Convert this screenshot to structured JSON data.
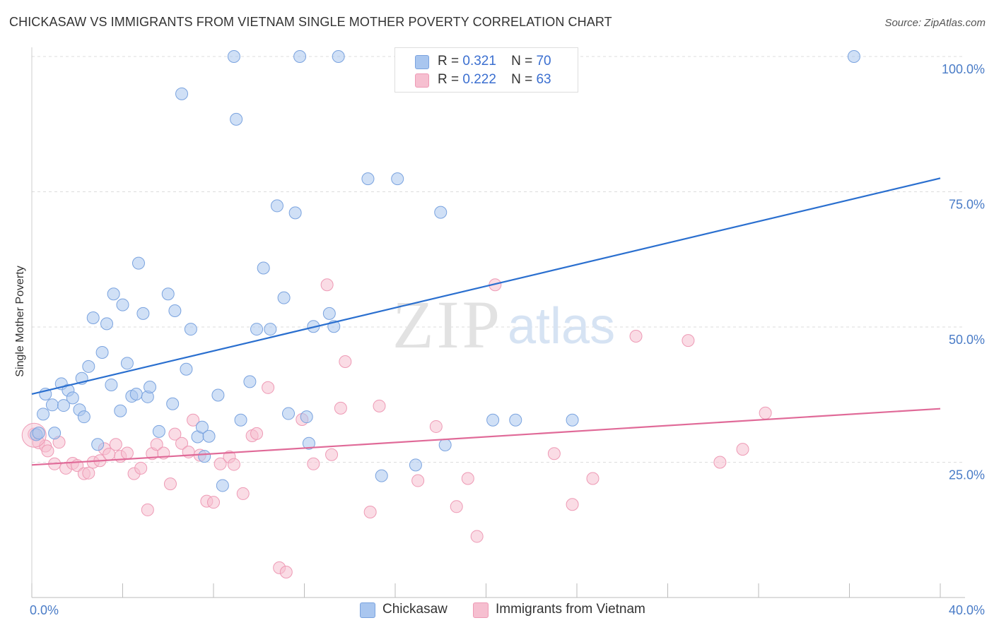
{
  "title": "CHICKASAW VS IMMIGRANTS FROM VIETNAM SINGLE MOTHER POVERTY CORRELATION CHART",
  "source": "Source: ZipAtlas.com",
  "watermark": {
    "part1": "ZIP",
    "part2": "atlas"
  },
  "legend_top": {
    "rows": [
      {
        "r_label": "R =",
        "r_value": "0.321",
        "n_label": "N =",
        "n_value": "70"
      },
      {
        "r_label": "R =",
        "r_value": "0.222",
        "n_label": "N =",
        "n_value": "63"
      }
    ]
  },
  "legend_bottom": {
    "chickasaw": "Chickasaw",
    "vietnam": "Immigrants from Vietnam"
  },
  "colors": {
    "blue_fill": "#a9c6ef",
    "blue_stroke": "#7aa3df",
    "blue_line": "#2a6fcf",
    "pink_fill": "#f6bfd0",
    "pink_stroke": "#ee9ab5",
    "pink_line": "#e06a98",
    "tick_text": "#4a7cc7",
    "grid": "#dddddd"
  },
  "chart_data": {
    "type": "scatter",
    "title": "CHICKASAW VS IMMIGRANTS FROM VIETNAM SINGLE MOTHER POVERTY CORRELATION CHART",
    "xlabel": "",
    "ylabel": "Single Mother Poverty",
    "xlim": [
      0,
      40
    ],
    "ylim": [
      0,
      100
    ],
    "x_tick_labels": [
      "0.0%",
      "40.0%"
    ],
    "y_tick_labels": [
      "25.0%",
      "50.0%",
      "75.0%",
      "100.0%"
    ],
    "y_ticks": [
      25,
      50,
      75,
      100
    ],
    "grid": "horizontal dashed",
    "legend": "top-center",
    "series": [
      {
        "name": "Chickasaw",
        "r": 0.321,
        "n": 70,
        "trend": {
          "x": [
            0,
            40
          ],
          "y": [
            37.6,
            77.5
          ]
        },
        "points": [
          [
            0.2,
            30.1
          ],
          [
            0.5,
            33.9
          ],
          [
            0.6,
            37.6
          ],
          [
            0.9,
            35.6
          ],
          [
            1.0,
            30.4
          ],
          [
            1.3,
            39.5
          ],
          [
            1.4,
            35.5
          ],
          [
            1.6,
            38.3
          ],
          [
            1.8,
            36.9
          ],
          [
            2.1,
            34.7
          ],
          [
            2.2,
            40.5
          ],
          [
            2.3,
            33.4
          ],
          [
            2.5,
            42.7
          ],
          [
            2.7,
            51.7
          ],
          [
            2.9,
            28.3
          ],
          [
            3.1,
            45.3
          ],
          [
            3.3,
            50.6
          ],
          [
            3.5,
            39.3
          ],
          [
            3.6,
            56.1
          ],
          [
            3.9,
            34.5
          ],
          [
            4.0,
            54.1
          ],
          [
            4.2,
            43.3
          ],
          [
            4.4,
            37.2
          ],
          [
            4.6,
            37.6
          ],
          [
            4.7,
            61.8
          ],
          [
            4.9,
            52.5
          ],
          [
            5.1,
            37.1
          ],
          [
            5.2,
            38.9
          ],
          [
            5.6,
            30.7
          ],
          [
            6.0,
            56.1
          ],
          [
            6.2,
            35.8
          ],
          [
            6.3,
            53.0
          ],
          [
            6.6,
            93.1
          ],
          [
            6.8,
            42.2
          ],
          [
            7.0,
            49.6
          ],
          [
            7.3,
            29.7
          ],
          [
            7.5,
            31.5
          ],
          [
            7.6,
            26.1
          ],
          [
            7.8,
            29.8
          ],
          [
            8.2,
            37.4
          ],
          [
            8.4,
            20.7
          ],
          [
            8.9,
            100
          ],
          [
            9.0,
            88.4
          ],
          [
            9.2,
            32.8
          ],
          [
            9.6,
            39.9
          ],
          [
            9.9,
            49.6
          ],
          [
            10.2,
            60.9
          ],
          [
            10.5,
            49.6
          ],
          [
            10.8,
            72.4
          ],
          [
            11.1,
            55.4
          ],
          [
            11.3,
            34.0
          ],
          [
            11.6,
            71.1
          ],
          [
            11.8,
            100
          ],
          [
            12.1,
            33.4
          ],
          [
            12.2,
            28.5
          ],
          [
            12.4,
            50.1
          ],
          [
            13.1,
            52.5
          ],
          [
            13.3,
            50.1
          ],
          [
            13.5,
            100
          ],
          [
            14.8,
            77.4
          ],
          [
            15.4,
            22.5
          ],
          [
            16.1,
            77.4
          ],
          [
            16.9,
            24.5
          ],
          [
            18.0,
            71.2
          ],
          [
            18.2,
            28.2
          ],
          [
            20.3,
            32.8
          ],
          [
            21.3,
            32.8
          ],
          [
            23.8,
            32.8
          ],
          [
            36.2,
            100
          ],
          [
            0.3,
            30.4
          ]
        ]
      },
      {
        "name": "Immigrants from Vietnam",
        "r": 0.222,
        "n": 63,
        "trend": {
          "x": [
            0,
            40
          ],
          "y": [
            24.5,
            34.9
          ]
        },
        "points": [
          [
            0.1,
            30.2
          ],
          [
            0.3,
            28.6
          ],
          [
            0.6,
            28.0
          ],
          [
            0.7,
            27.1
          ],
          [
            1.0,
            24.7
          ],
          [
            1.2,
            28.7
          ],
          [
            1.5,
            23.9
          ],
          [
            1.8,
            24.8
          ],
          [
            2.0,
            24.4
          ],
          [
            2.3,
            22.9
          ],
          [
            2.5,
            23.0
          ],
          [
            2.7,
            25.0
          ],
          [
            3.0,
            25.3
          ],
          [
            3.2,
            27.5
          ],
          [
            3.4,
            26.5
          ],
          [
            3.7,
            28.3
          ],
          [
            3.9,
            26.1
          ],
          [
            4.2,
            26.7
          ],
          [
            4.5,
            22.9
          ],
          [
            4.8,
            23.9
          ],
          [
            5.1,
            16.2
          ],
          [
            5.3,
            26.6
          ],
          [
            5.5,
            28.3
          ],
          [
            5.8,
            26.7
          ],
          [
            6.1,
            21.0
          ],
          [
            6.3,
            30.2
          ],
          [
            6.6,
            28.5
          ],
          [
            6.9,
            26.9
          ],
          [
            7.1,
            32.8
          ],
          [
            7.4,
            26.3
          ],
          [
            7.7,
            17.8
          ],
          [
            8.0,
            17.6
          ],
          [
            8.3,
            24.7
          ],
          [
            8.7,
            26.0
          ],
          [
            8.9,
            24.6
          ],
          [
            9.3,
            19.2
          ],
          [
            9.7,
            29.9
          ],
          [
            9.9,
            30.3
          ],
          [
            10.4,
            38.8
          ],
          [
            10.9,
            5.5
          ],
          [
            11.2,
            4.7
          ],
          [
            11.9,
            32.9
          ],
          [
            12.4,
            24.7
          ],
          [
            13.0,
            57.8
          ],
          [
            13.2,
            26.4
          ],
          [
            13.6,
            35.0
          ],
          [
            13.8,
            43.6
          ],
          [
            14.9,
            15.8
          ],
          [
            15.3,
            35.4
          ],
          [
            17.0,
            21.6
          ],
          [
            17.8,
            31.6
          ],
          [
            18.7,
            16.8
          ],
          [
            19.2,
            22.0
          ],
          [
            19.6,
            11.3
          ],
          [
            20.4,
            57.8
          ],
          [
            23.0,
            26.6
          ],
          [
            23.8,
            17.2
          ],
          [
            24.7,
            22.0
          ],
          [
            26.6,
            48.3
          ],
          [
            28.9,
            47.5
          ],
          [
            30.3,
            25.0
          ],
          [
            31.3,
            27.4
          ],
          [
            32.3,
            34.1
          ]
        ]
      }
    ]
  }
}
